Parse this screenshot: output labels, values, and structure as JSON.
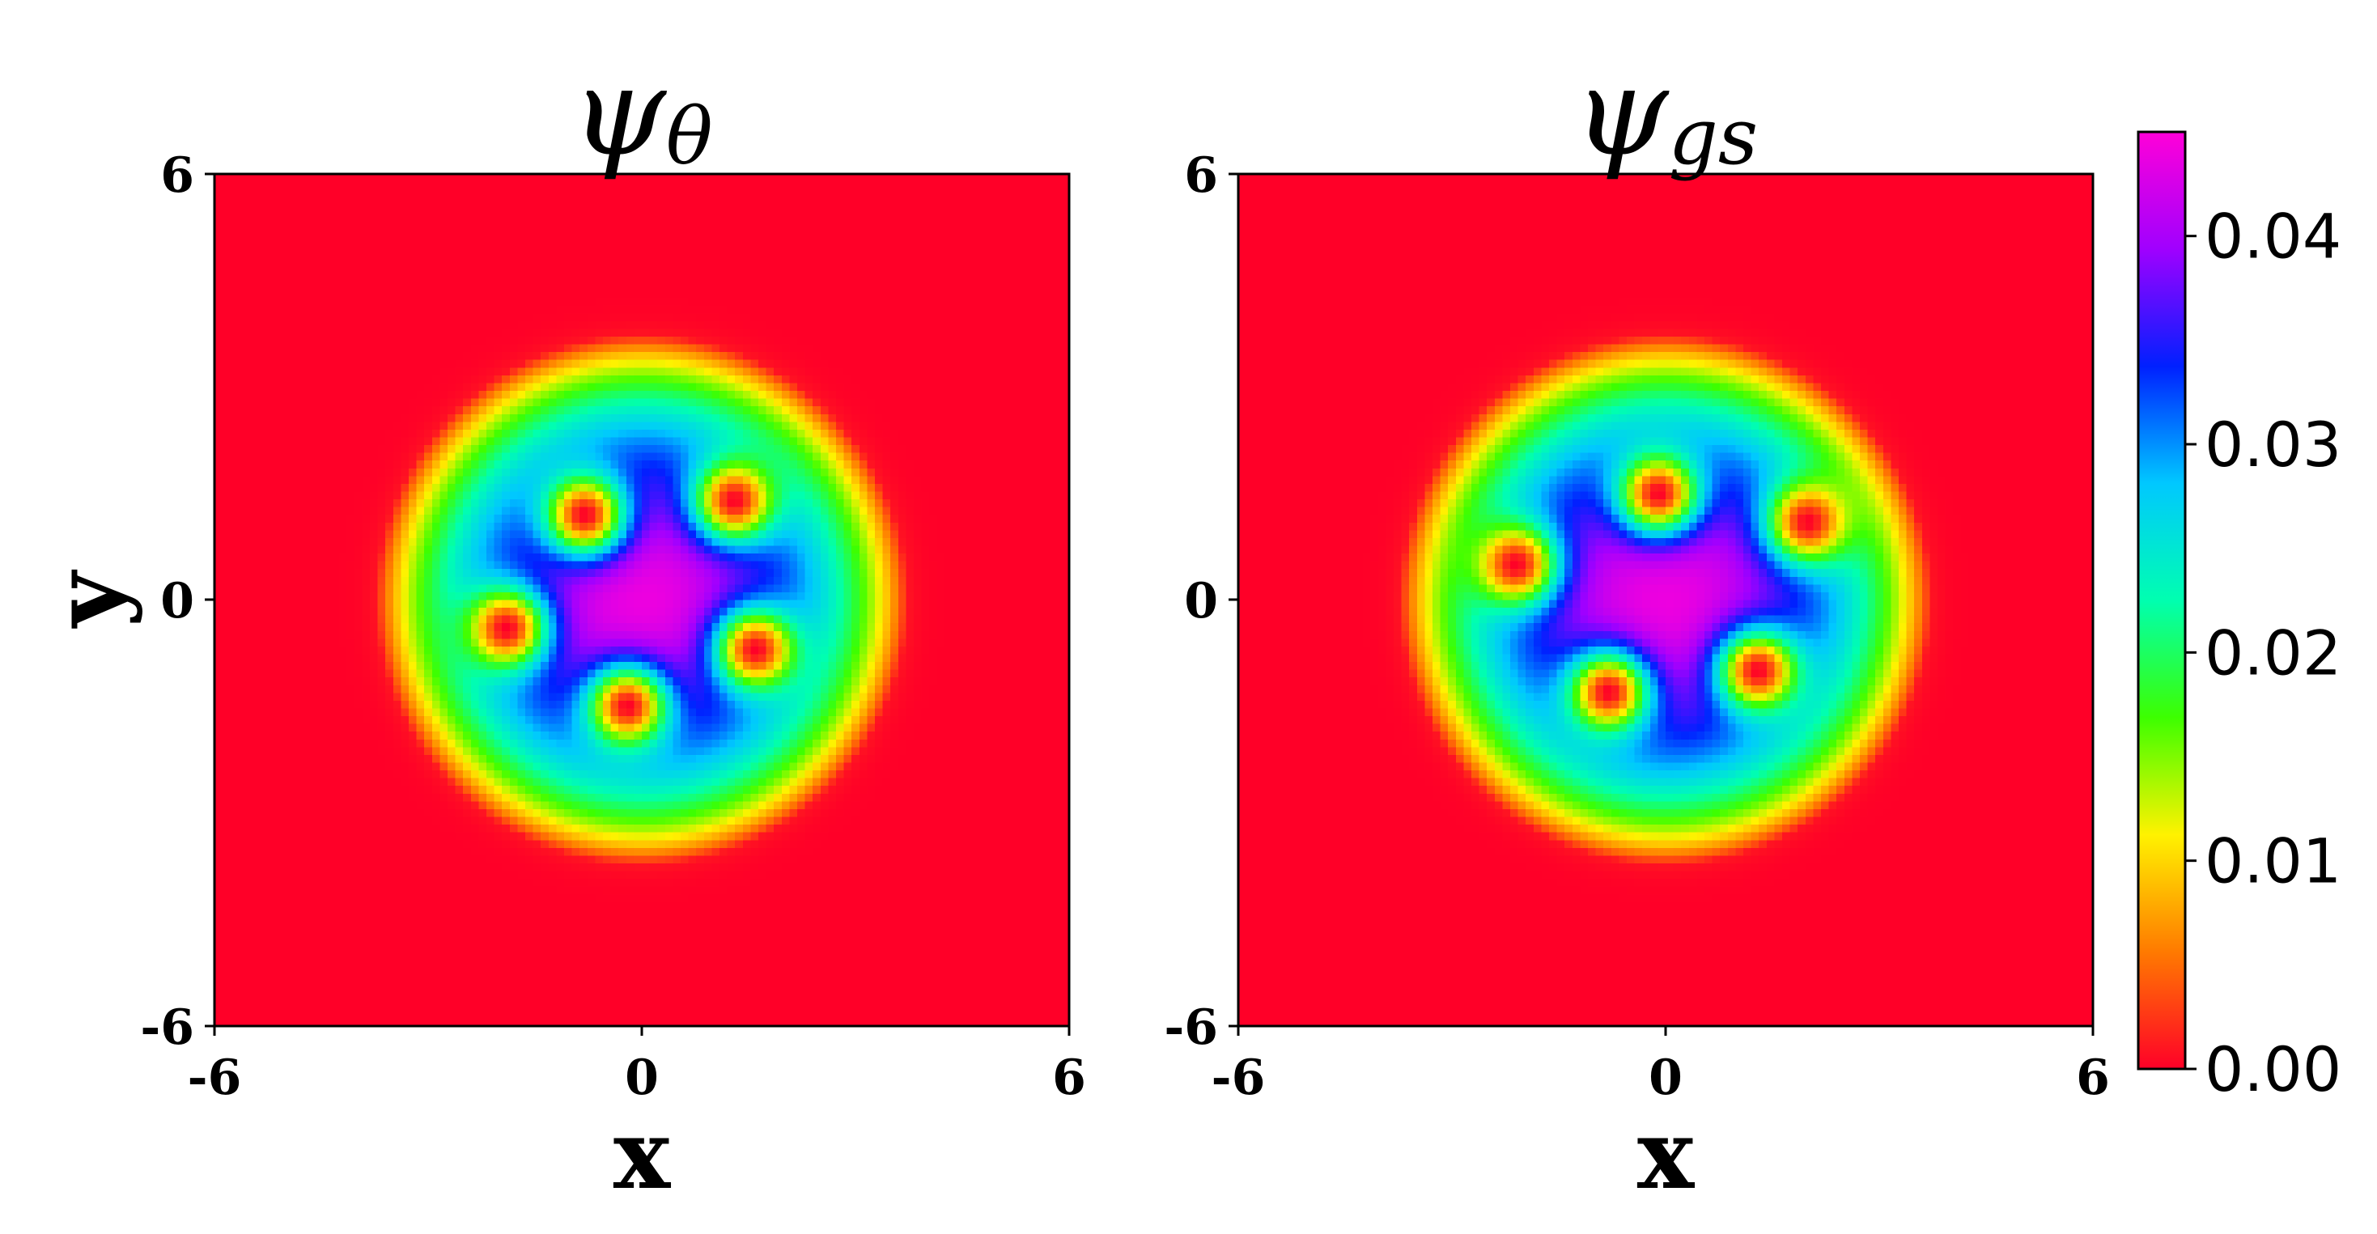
{
  "chart_data": [
    {
      "type": "heatmap",
      "title": "ψθ",
      "title_main": "ψ",
      "title_sub": "θ",
      "xlabel": "x",
      "ylabel": "y",
      "xlim": [
        -6,
        6
      ],
      "ylim": [
        -6,
        6
      ],
      "x_ticks": [
        "-6",
        "0",
        "6"
      ],
      "y_ticks": [
        "-6",
        "0",
        "6"
      ],
      "grid": false,
      "density_model": {
        "ring_radius": 3.75,
        "core_max": 0.044,
        "background": 0.0,
        "vortices": [
          {
            "x": -1.9,
            "y": -0.4
          },
          {
            "x": -0.8,
            "y": 1.2
          },
          {
            "x": 1.3,
            "y": 1.4
          },
          {
            "x": 1.6,
            "y": -0.7
          },
          {
            "x": -0.2,
            "y": -1.5
          }
        ]
      }
    },
    {
      "type": "heatmap",
      "title": "ψgs",
      "title_main": "ψ",
      "title_sub": "gs",
      "xlabel": "x",
      "ylabel": "",
      "xlim": [
        -6,
        6
      ],
      "ylim": [
        -6,
        6
      ],
      "x_ticks": [
        "-6",
        "0",
        "6"
      ],
      "y_ticks": [
        "-6",
        "0",
        "6"
      ],
      "grid": false,
      "density_model": {
        "ring_radius": 3.75,
        "core_max": 0.044,
        "background": 0.0,
        "vortices": [
          {
            "x": -2.1,
            "y": 0.5
          },
          {
            "x": -0.1,
            "y": 1.5
          },
          {
            "x": 2.0,
            "y": 1.1
          },
          {
            "x": 1.3,
            "y": -1.0
          },
          {
            "x": -0.8,
            "y": -1.3
          }
        ]
      }
    }
  ],
  "colorbar": {
    "colormap": "gist_rainbow_r",
    "min": 0.0,
    "max": 0.045,
    "ticks": [
      {
        "value": 0.0,
        "label": "0.00"
      },
      {
        "value": 0.01,
        "label": "0.01"
      },
      {
        "value": 0.02,
        "label": "0.02"
      },
      {
        "value": 0.03,
        "label": "0.03"
      },
      {
        "value": 0.04,
        "label": "0.04"
      }
    ],
    "stops": [
      "#ff0028",
      "#ff7a00",
      "#fff200",
      "#3dff00",
      "#00ffb0",
      "#00c8ff",
      "#0020ff",
      "#a000ff",
      "#ff00d8"
    ]
  }
}
